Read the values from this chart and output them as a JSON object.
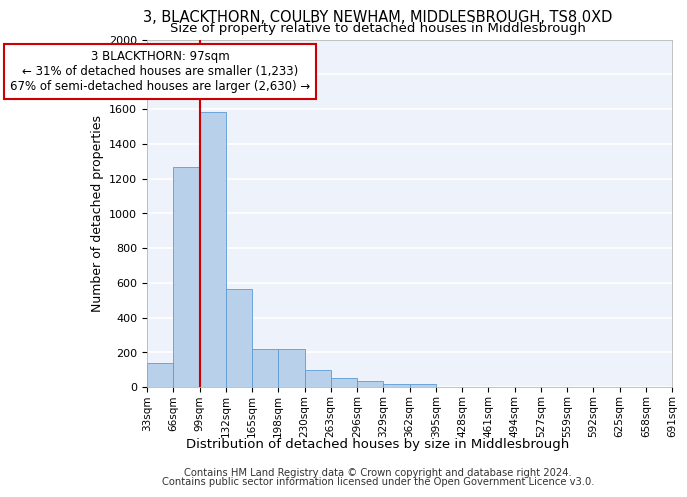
{
  "title1": "3, BLACKTHORN, COULBY NEWHAM, MIDDLESBROUGH, TS8 0XD",
  "title2": "Size of property relative to detached houses in Middlesbrough",
  "xlabel": "Distribution of detached houses by size in Middlesbrough",
  "ylabel": "Number of detached properties",
  "footnote1": "Contains HM Land Registry data © Crown copyright and database right 2024.",
  "footnote2": "Contains public sector information licensed under the Open Government Licence v3.0.",
  "bar_values": [
    140,
    1265,
    1580,
    565,
    220,
    220,
    95,
    50,
    35,
    20,
    15,
    0,
    0,
    0,
    0,
    0,
    0,
    0,
    0,
    0
  ],
  "bar_labels": [
    "33sqm",
    "66sqm",
    "99sqm",
    "132sqm",
    "165sqm",
    "198sqm",
    "230sqm",
    "263sqm",
    "296sqm",
    "329sqm",
    "362sqm",
    "395sqm",
    "428sqm",
    "461sqm",
    "494sqm",
    "527sqm",
    "559sqm",
    "592sqm",
    "625sqm",
    "658sqm",
    "691sqm"
  ],
  "bar_color": "#b8d0ea",
  "bar_edge_color": "#5b9bd5",
  "ylim": [
    0,
    2000
  ],
  "yticks": [
    0,
    200,
    400,
    600,
    800,
    1000,
    1200,
    1400,
    1600,
    1800,
    2000
  ],
  "vline_x": 2.0,
  "vline_color": "#cc0000",
  "annotation_text": "3 BLACKTHORN: 97sqm\n← 31% of detached houses are smaller (1,233)\n67% of semi-detached houses are larger (2,630) →",
  "annotation_box_color": "white",
  "annotation_box_edge": "#cc0000",
  "background_color": "#eef2fa",
  "grid_color": "white",
  "title1_fontsize": 10.5,
  "title2_fontsize": 9.5,
  "axis_label_fontsize": 9,
  "tick_fontsize": 8,
  "footnote_fontsize": 7.2,
  "annot_fontsize": 8.5
}
